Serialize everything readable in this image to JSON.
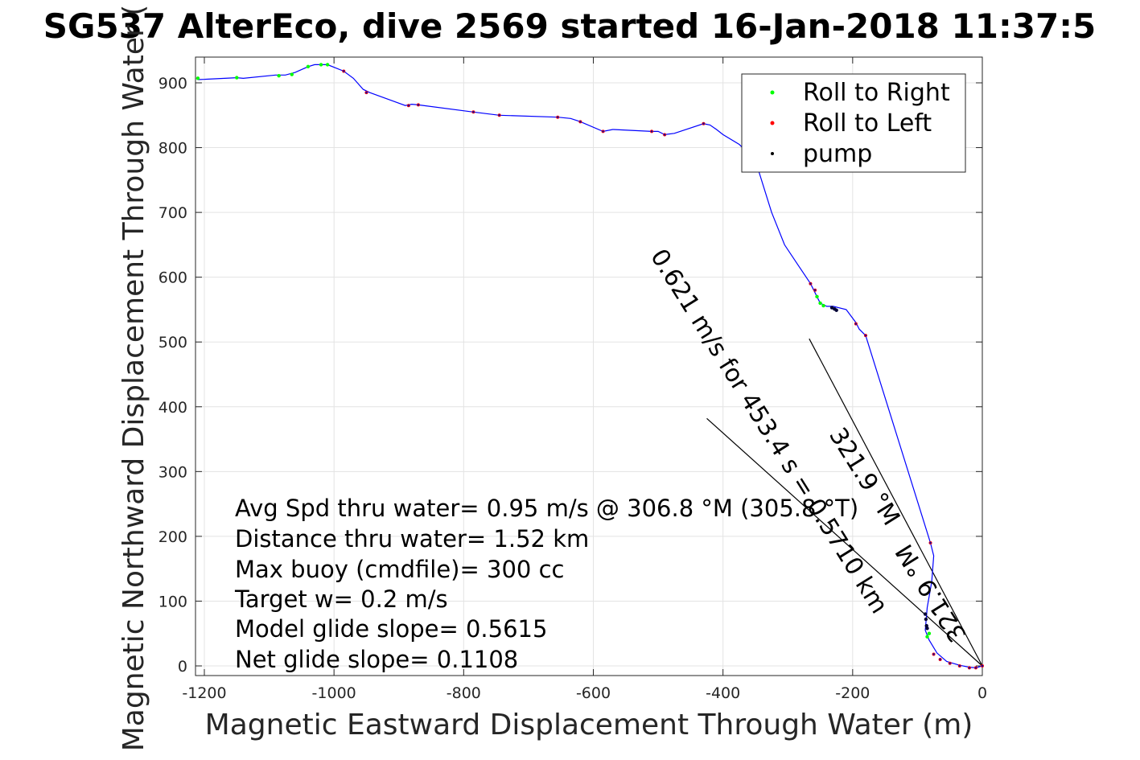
{
  "chart_data": {
    "type": "line",
    "title": "SG537 AlterEco, dive 2569 started 16-Jan-2018 11:37:5",
    "xlabel": "Magnetic Eastward Displacement Through Water (m)",
    "ylabel": "Magnetic Northward Displacement Through Water (",
    "xlim": [
      -1210,
      0
    ],
    "ylim": [
      -15,
      940
    ],
    "xticks": [
      -1200,
      -1000,
      -800,
      -600,
      -400,
      -200,
      0
    ],
    "yticks": [
      0,
      100,
      200,
      300,
      400,
      500,
      600,
      700,
      800,
      900
    ],
    "grid": true,
    "legend_position": "top-right",
    "legend": [
      {
        "label": "Roll to Right",
        "color": "#00ff00"
      },
      {
        "label": "Roll to Left",
        "color": "#ff0000"
      },
      {
        "label": "pump",
        "color": "#000000"
      }
    ],
    "series": [
      {
        "color": "#0000ff",
        "x": [
          -1210,
          -1150,
          -1140,
          -1090,
          -1075,
          -1060,
          -1040,
          -1030,
          -1020,
          -1010,
          -985,
          -970,
          -955,
          -945,
          -890,
          -880,
          -870,
          -785,
          -745,
          -655,
          -635,
          -620,
          -585,
          -570,
          -510,
          -500,
          -490,
          -475,
          -430,
          -420,
          -410,
          -400,
          -375,
          -350,
          -325,
          -305,
          -285,
          -265,
          -260,
          -250,
          -240,
          -230,
          -210,
          -195,
          -190,
          -180,
          -80,
          -75,
          -78,
          -85,
          -88,
          -82,
          -70,
          -55,
          -35,
          -20,
          -10,
          0
        ],
        "y": [
          905,
          908,
          907,
          912,
          912,
          916,
          925,
          928,
          928,
          928,
          918,
          907,
          890,
          885,
          865,
          867,
          866,
          855,
          850,
          847,
          845,
          840,
          825,
          828,
          825,
          825,
          820,
          822,
          837,
          835,
          828,
          820,
          805,
          780,
          700,
          650,
          620,
          590,
          580,
          560,
          555,
          555,
          550,
          530,
          520,
          510,
          190,
          170,
          130,
          90,
          55,
          40,
          20,
          7,
          1,
          -2,
          -3,
          0
        ]
      }
    ],
    "roll_right_points": [
      [
        -1210,
        907
      ],
      [
        -1150,
        908
      ],
      [
        -1085,
        911
      ],
      [
        -1065,
        913
      ],
      [
        -1040,
        925
      ],
      [
        -1020,
        928
      ],
      [
        -1010,
        928
      ],
      [
        -255,
        570
      ],
      [
        -250,
        560
      ],
      [
        -245,
        556
      ],
      [
        -82,
        50
      ],
      [
        -85,
        45
      ]
    ],
    "roll_left_points": [
      [
        -985,
        918
      ],
      [
        -950,
        885
      ],
      [
        -885,
        865
      ],
      [
        -870,
        866
      ],
      [
        -785,
        855
      ],
      [
        -745,
        850
      ],
      [
        -655,
        847
      ],
      [
        -620,
        840
      ],
      [
        -585,
        825
      ],
      [
        -510,
        825
      ],
      [
        -490,
        820
      ],
      [
        -430,
        837
      ],
      [
        -265,
        590
      ],
      [
        -258,
        580
      ],
      [
        -195,
        528
      ],
      [
        -180,
        510
      ],
      [
        -80,
        190
      ],
      [
        -75,
        18
      ],
      [
        -65,
        10
      ],
      [
        -50,
        4
      ],
      [
        -35,
        0
      ],
      [
        -20,
        -3
      ],
      [
        -10,
        -3
      ],
      [
        0,
        0
      ]
    ],
    "pump_points": [
      [
        -232,
        553
      ],
      [
        -228,
        551
      ],
      [
        -225,
        549
      ],
      [
        -88,
        80
      ],
      [
        -87,
        72
      ],
      [
        -86,
        62
      ],
      [
        -85,
        58
      ]
    ],
    "reference_lines": [
      {
        "x": [
          -267,
          0
        ],
        "y": [
          505,
          0
        ]
      },
      {
        "x": [
          -425,
          0
        ],
        "y": [
          382,
          0
        ]
      }
    ],
    "angled_labels": [
      "0.621 m/s for 453.4 s = 0.5710 km",
      "321.9 °M",
      "321.9 °M"
    ],
    "annotations": [
      "Avg Spd thru water=  0.95 m/s @ 306.8 °M (305.8 °T)",
      "Distance thru water=  1.52 km",
      "Max buoy (cmdfile)= 300 cc",
      "Target w= 0.2 m/s",
      "Model glide slope= 0.5615",
      "Net glide slope= 0.1108"
    ]
  }
}
